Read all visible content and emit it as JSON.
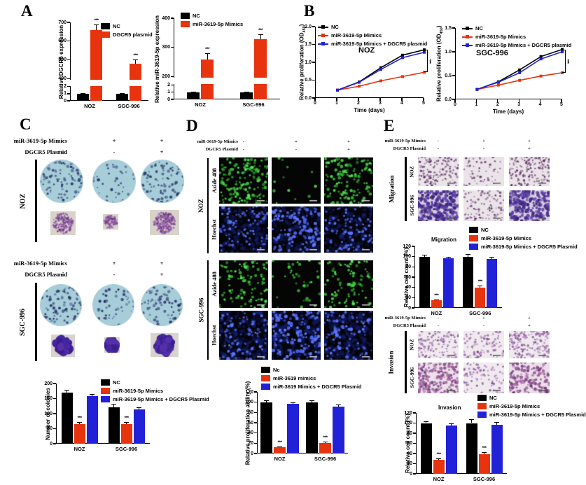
{
  "colors": {
    "nc": "#000000",
    "mimics": "#e8330f",
    "combo": "#2121d8"
  },
  "panel_labels": {
    "A": "A",
    "B": "B",
    "C": "C",
    "D": "D",
    "E": "E"
  },
  "cond_rows": [
    {
      "label": "miR-3619-5p Mimics",
      "values": [
        "-",
        "+",
        "+"
      ]
    },
    {
      "label": "DGCR5 Plasmid",
      "values": [
        "-",
        "-",
        "+"
      ]
    }
  ],
  "group_labels": {
    "c_noz": "NOZ",
    "c_sgc": "SGC-996",
    "d_noz": "NOZ",
    "d_sgc": "SGC-996",
    "d_row_azide": "Azide 488",
    "d_row_hoechst": "Hoechst",
    "e_migration": "Migration",
    "e_invasion": "Invasion",
    "e_mig_noz": "NOZ",
    "e_mig_sgc": "SGC-996",
    "e_inv_noz": "NOZ",
    "e_inv_sgc": "SGC-996"
  },
  "chart_data": [
    {
      "id": "a_dgcr5",
      "type": "bar",
      "ylabel": "Relative DGCR5 expression",
      "categories": [
        "NOZ",
        "SGC-996"
      ],
      "axis": {
        "break": {
          "lower_max": 2,
          "lower_ticks": [
            0,
            1,
            2
          ],
          "upper_min": 400,
          "upper_max": 700,
          "upper_ticks": [
            400,
            500,
            600,
            700
          ]
        }
      },
      "series": [
        {
          "name": "NC",
          "color": "nc",
          "values": [
            1,
            1
          ],
          "errors": [
            0.08,
            0.08
          ]
        },
        {
          "name": "DGCR5 plasmid",
          "color": "mimics",
          "values": [
            660,
            480
          ],
          "errors": [
            28,
            22
          ],
          "sig": [
            "***",
            "***"
          ]
        }
      ]
    },
    {
      "id": "a_mir",
      "type": "bar",
      "ylabel": "Relative miR-3619-5p expression",
      "categories": [
        "NOZ",
        "SGC-996"
      ],
      "axis": {
        "break": {
          "lower_max": 2,
          "lower_ticks": [
            0,
            1,
            2
          ],
          "upper_min": 200,
          "upper_max": 400,
          "upper_ticks": [
            200,
            300,
            400
          ]
        }
      },
      "series": [
        {
          "name": "NC",
          "color": "nc",
          "values": [
            1,
            1
          ],
          "errors": [
            0.08,
            0.08
          ]
        },
        {
          "name": "miR-3619-5p Mimics",
          "color": "mimics",
          "values": [
            258,
            328
          ],
          "errors": [
            22,
            16
          ],
          "sig": [
            "***",
            "***"
          ]
        }
      ]
    },
    {
      "id": "b_noz",
      "type": "line",
      "ylabel": "Relative proliferation (OD",
      "ylabel_sub": "450",
      "ylabel_end": ")",
      "xlabel": "Time (days)",
      "annotation": "NOZ",
      "sig": "***",
      "x": [
        1,
        2,
        3,
        4,
        5
      ],
      "xticks": [
        0,
        1,
        2,
        3,
        4,
        5
      ],
      "ymax": 2,
      "yticks": [
        0,
        0.5,
        1,
        1.5,
        2
      ],
      "series": [
        {
          "name": "NC",
          "color": "nc",
          "values": [
            0.22,
            0.45,
            0.85,
            1.2,
            1.35
          ]
        },
        {
          "name": "miR-3619-5p Mimics",
          "color": "mimics",
          "values": [
            0.22,
            0.33,
            0.48,
            0.6,
            0.72
          ]
        },
        {
          "name": "miR-3619-5p Mimics + DGCR5 plasmid",
          "color": "combo",
          "values": [
            0.22,
            0.44,
            0.8,
            1.13,
            1.28
          ]
        }
      ]
    },
    {
      "id": "b_sgc",
      "type": "line",
      "ylabel": "Relative proliferation (OD",
      "ylabel_sub": "450",
      "ylabel_end": ")",
      "xlabel": "Time (days)",
      "annotation": "SGC-996",
      "sig": "***",
      "x": [
        1,
        2,
        3,
        4,
        5
      ],
      "xticks": [
        0,
        1,
        2,
        3,
        4,
        5
      ],
      "ymax": 1.5,
      "yticks": [
        0,
        0.5,
        1,
        1.5
      ],
      "series": [
        {
          "name": "NC",
          "color": "nc",
          "values": [
            0.21,
            0.37,
            0.62,
            0.9,
            1.05
          ]
        },
        {
          "name": "miR-3619-5p Mimics",
          "color": "mimics",
          "values": [
            0.21,
            0.3,
            0.4,
            0.49,
            0.56
          ]
        },
        {
          "name": "miR-3619-5p Mimics + DGCR5 plasmid",
          "color": "combo",
          "values": [
            0.21,
            0.36,
            0.56,
            0.85,
            1.0
          ]
        }
      ]
    },
    {
      "id": "c_colonies",
      "type": "bar",
      "ylabel": "Number of colonies",
      "categories": [
        "NOZ",
        "SGC-996"
      ],
      "ymax": 200,
      "yticks": [
        0,
        50,
        100,
        150,
        200
      ],
      "series": [
        {
          "name": "NC",
          "color": "nc",
          "values": [
            170,
            122
          ],
          "errors": [
            8,
            10
          ]
        },
        {
          "name": "miR-3619-5p Mimics",
          "color": "mimics",
          "values": [
            65,
            65
          ],
          "errors": [
            8,
            8
          ],
          "sig": [
            "***",
            "***"
          ]
        },
        {
          "name": "miR-3619-5p Mimics + DGCR5 Plasmid",
          "color": "combo",
          "values": [
            158,
            114
          ],
          "errors": [
            6,
            7
          ]
        }
      ]
    },
    {
      "id": "d_prolif",
      "type": "bar",
      "ylabel": "Relative proliferation ability (%)",
      "categories": [
        "NOZ",
        "SGC-996"
      ],
      "ymax": 120,
      "yticks": [
        0,
        20,
        40,
        60,
        80,
        100,
        120
      ],
      "series": [
        {
          "name": "Nc",
          "color": "nc",
          "values": [
            100,
            100
          ],
          "errors": [
            3,
            4
          ]
        },
        {
          "name": "miR-3619 mimics",
          "color": "mimics",
          "values": [
            12,
            20
          ],
          "errors": [
            2,
            3
          ],
          "sig": [
            "***",
            "***"
          ]
        },
        {
          "name": "miR-3619 Mimics + DGCR5 Plasmid",
          "color": "combo",
          "values": [
            97,
            91
          ],
          "errors": [
            2,
            4
          ]
        }
      ]
    },
    {
      "id": "e_mig",
      "type": "bar",
      "title": "Migration",
      "ylabel": "Relative cell count (%)",
      "categories": [
        "NOZ",
        "SGC-996"
      ],
      "ymax": 120,
      "yticks": [
        0,
        20,
        40,
        60,
        80,
        100,
        120
      ],
      "series": [
        {
          "name": "NC",
          "color": "nc",
          "values": [
            100,
            100
          ],
          "errors": [
            4,
            5
          ]
        },
        {
          "name": "miR-3619-5p Mimics",
          "color": "mimics",
          "values": [
            15,
            40
          ],
          "errors": [
            2,
            4
          ],
          "sig": [
            "***",
            "***"
          ]
        },
        {
          "name": "miR-3619-5p Mimics + DGCR5 Plasmid",
          "color": "combo",
          "values": [
            97,
            96
          ],
          "errors": [
            2,
            3
          ]
        }
      ]
    },
    {
      "id": "e_inv",
      "type": "bar",
      "title": "Invasion",
      "ylabel": "Relative cell count (%)",
      "categories": [
        "NOZ",
        "SGC-996"
      ],
      "ymax": 120,
      "yticks": [
        0,
        20,
        40,
        60,
        80,
        100,
        120
      ],
      "series": [
        {
          "name": "NC",
          "color": "nc",
          "values": [
            100,
            100
          ],
          "errors": [
            4,
            7
          ]
        },
        {
          "name": "miR-3619-5p Mimics",
          "color": "mimics",
          "values": [
            27,
            39
          ],
          "errors": [
            3,
            4
          ],
          "sig": [
            "***",
            "***"
          ]
        },
        {
          "name": "miR-3619-5p Mimics + DGCR5 Plasmid",
          "color": "combo",
          "values": [
            95,
            97
          ],
          "errors": [
            4,
            5
          ]
        }
      ]
    }
  ]
}
